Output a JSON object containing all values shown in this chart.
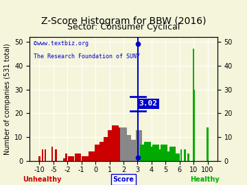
{
  "title": "Z-Score Histogram for BBW (2016)",
  "subtitle": "Sector: Consumer Cyclical",
  "zscore_value": 3.02,
  "zscore_label": "3.02",
  "watermark1": "©www.textbiz.org",
  "watermark2": "The Research Foundation of SUNY",
  "bg_color": "#f5f5dc",
  "red_color": "#cc0000",
  "gray_color": "#888888",
  "green_color": "#00aa00",
  "blue_color": "#0000cc",
  "score_ticks_v": [
    -10,
    -5,
    -2,
    -1,
    0,
    1,
    2,
    3,
    4,
    5,
    6,
    10,
    100
  ],
  "bar_data": [
    [
      -11.5,
      2,
      "red"
    ],
    [
      -10.5,
      1,
      "red"
    ],
    [
      -9.0,
      5,
      "red"
    ],
    [
      -8.0,
      5,
      "red"
    ],
    [
      -5.5,
      6,
      "red"
    ],
    [
      -4.5,
      5,
      "red"
    ],
    [
      -2.75,
      1,
      "red"
    ],
    [
      -2.25,
      3,
      "red"
    ],
    [
      -1.75,
      2,
      "red"
    ],
    [
      -1.25,
      3,
      "red"
    ],
    [
      -0.75,
      2,
      "red"
    ],
    [
      -0.25,
      4,
      "red"
    ],
    [
      0.2,
      7,
      "red"
    ],
    [
      0.5,
      8,
      "red"
    ],
    [
      0.8,
      10,
      "red"
    ],
    [
      1.1,
      13,
      "red"
    ],
    [
      1.4,
      15,
      "red"
    ],
    [
      1.7,
      14,
      "red"
    ],
    [
      2.0,
      14,
      "gray"
    ],
    [
      2.3,
      11,
      "gray"
    ],
    [
      2.6,
      9,
      "gray"
    ],
    [
      2.9,
      9,
      "gray"
    ],
    [
      3.1,
      13,
      "gray"
    ],
    [
      3.4,
      7,
      "green"
    ],
    [
      3.7,
      8,
      "green"
    ],
    [
      4.0,
      6,
      "green"
    ],
    [
      4.3,
      7,
      "green"
    ],
    [
      4.6,
      5,
      "green"
    ],
    [
      4.9,
      7,
      "green"
    ],
    [
      5.2,
      4,
      "green"
    ],
    [
      5.5,
      6,
      "green"
    ],
    [
      5.8,
      3,
      "green"
    ],
    [
      6.5,
      5,
      "green"
    ],
    [
      7.5,
      5,
      "green"
    ],
    [
      8.5,
      3,
      "green"
    ],
    [
      10.0,
      47,
      "green"
    ],
    [
      15.0,
      30,
      "green"
    ],
    [
      100.0,
      14,
      "green"
    ]
  ],
  "ylim": [
    0,
    52
  ],
  "yticks": [
    0,
    10,
    20,
    30,
    40,
    50
  ],
  "title_fontsize": 10,
  "subtitle_fontsize": 9,
  "tick_fontsize": 7,
  "ylabel_fontsize": 7
}
